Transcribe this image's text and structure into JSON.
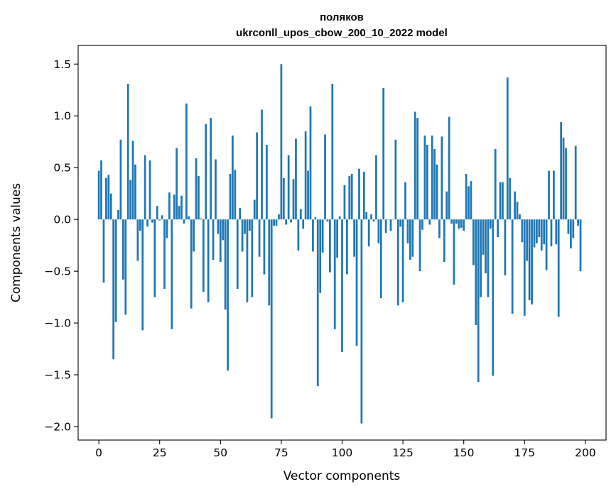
{
  "chart_data": {
    "type": "bar",
    "title_line1": "поляков",
    "title_line2": "ukrconll_upos_cbow_200_10_2022 model",
    "xlabel": "Vector components",
    "ylabel": "Components values",
    "xlim": [
      -8.5,
      208.5
    ],
    "ylim": [
      -2.13,
      1.68
    ],
    "xticks": [
      0,
      25,
      50,
      75,
      100,
      125,
      150,
      175,
      200
    ],
    "xtick_labels": [
      "0",
      "25",
      "50",
      "75",
      "100",
      "125",
      "150",
      "175",
      "200"
    ],
    "yticks": [
      1.5,
      1.0,
      0.5,
      0.0,
      -0.5,
      -1.0,
      -1.5,
      -2.0
    ],
    "ytick_labels": [
      "1.5",
      "1.0",
      "0.5",
      "0.0",
      "−0.5",
      "−1.0",
      "−1.5",
      "−2.0"
    ],
    "bar_color": "#1f77b4",
    "grid": false,
    "values": [
      0.47,
      0.57,
      -0.61,
      0.4,
      0.43,
      0.25,
      -1.35,
      -0.99,
      0.09,
      0.77,
      -0.58,
      -0.92,
      1.31,
      0.38,
      0.76,
      0.53,
      -0.4,
      -0.11,
      -1.07,
      0.62,
      -0.07,
      0.57,
      -0.03,
      -0.75,
      0.13,
      -0.01,
      0.04,
      -0.67,
      -0.18,
      0.26,
      -1.06,
      0.24,
      0.69,
      0.13,
      0.23,
      -0.04,
      1.12,
      0.03,
      -0.86,
      -0.31,
      0.59,
      0.42,
      0.01,
      -0.7,
      0.92,
      -0.8,
      0.98,
      -0.39,
      0.58,
      -0.14,
      -0.41,
      -0.2,
      -0.87,
      -1.46,
      0.44,
      0.81,
      0.48,
      -0.67,
      0.11,
      -0.31,
      -0.14,
      -0.8,
      -0.11,
      -0.75,
      0.19,
      0.84,
      -0.36,
      1.06,
      -0.53,
      0.72,
      -0.83,
      -1.92,
      -0.06,
      -0.06,
      0.05,
      1.5,
      0.4,
      -0.05,
      0.62,
      -0.03,
      0.39,
      0.78,
      -0.3,
      0.1,
      -0.09,
      0.85,
      0.47,
      1.09,
      -0.31,
      0.02,
      -1.61,
      -0.71,
      -0.32,
      0.82,
      -0.02,
      -0.51,
      1.31,
      -1.06,
      -0.37,
      0.03,
      -1.28,
      0.33,
      -0.53,
      0.42,
      0.44,
      -0.36,
      -1.22,
      0.49,
      -1.97,
      0.46,
      0.07,
      -0.26,
      0.05,
      -0.02,
      0.62,
      -0.23,
      -0.76,
      1.27,
      -0.13,
      0.0,
      -0.11,
      0.0,
      0.77,
      -0.83,
      -0.07,
      -0.8,
      0.36,
      -0.23,
      -0.39,
      -0.36,
      1.04,
      0.98,
      -0.5,
      -0.1,
      0.81,
      0.72,
      -0.05,
      0.81,
      0.68,
      0.53,
      -0.18,
      0.8,
      -0.41,
      0.27,
      0.99,
      -0.04,
      -0.63,
      -0.04,
      -0.09,
      -0.08,
      -0.11,
      0.44,
      0.32,
      0.37,
      -0.44,
      -1.02,
      -1.57,
      -0.75,
      -0.34,
      -0.52,
      -0.75,
      -0.09,
      -1.51,
      0.68,
      -0.17,
      0.36,
      0.36,
      -0.54,
      1.37,
      0.4,
      -0.91,
      0.27,
      0.17,
      0.05,
      -0.22,
      -0.93,
      -0.4,
      -0.78,
      -0.82,
      -0.27,
      -0.23,
      -0.17,
      -0.3,
      -0.24,
      -0.49,
      0.47,
      -0.26,
      0.47,
      -0.24,
      -0.94,
      0.94,
      0.79,
      0.69,
      -0.14,
      -0.28,
      -0.18,
      0.71,
      -0.06,
      -0.5
    ]
  }
}
